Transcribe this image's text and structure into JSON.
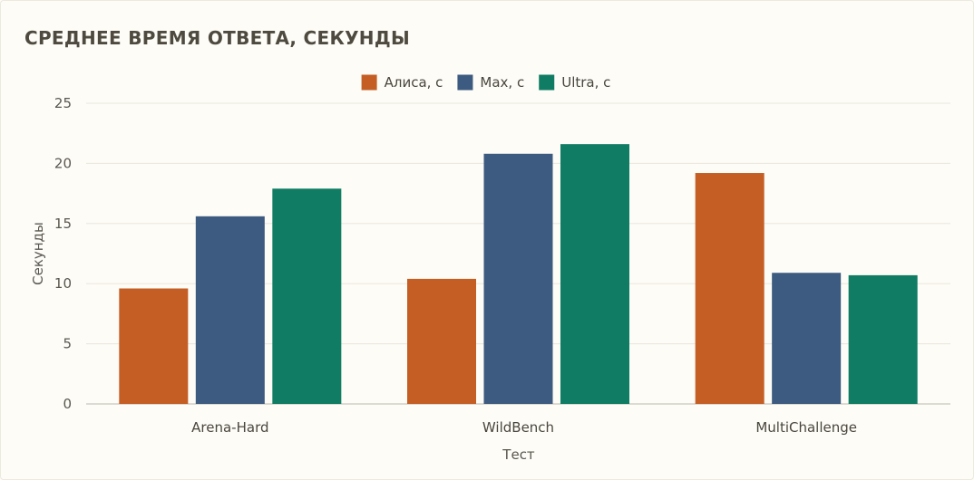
{
  "chart_data": {
    "type": "bar",
    "title": "СРЕДНЕЕ ВРЕМЯ ОТВЕТА, СЕКУНДЫ",
    "xlabel": "Тест",
    "ylabel": "Секунды",
    "categories": [
      "Arena-Hard",
      "WildBench",
      "MultiChallenge"
    ],
    "series": [
      {
        "name": "Алиса, с",
        "color": "#c45e25",
        "values": [
          9.6,
          10.4,
          19.2
        ]
      },
      {
        "name": "Max, с",
        "color": "#3d5a80",
        "values": [
          15.6,
          20.8,
          10.9
        ]
      },
      {
        "name": "Ultra, с",
        "color": "#0f7c63",
        "values": [
          17.9,
          21.6,
          10.7
        ]
      }
    ],
    "ylim": [
      0,
      25
    ],
    "yticks": [
      0,
      5,
      10,
      15,
      20,
      25
    ],
    "grid": true,
    "legend_position": "top-center"
  }
}
